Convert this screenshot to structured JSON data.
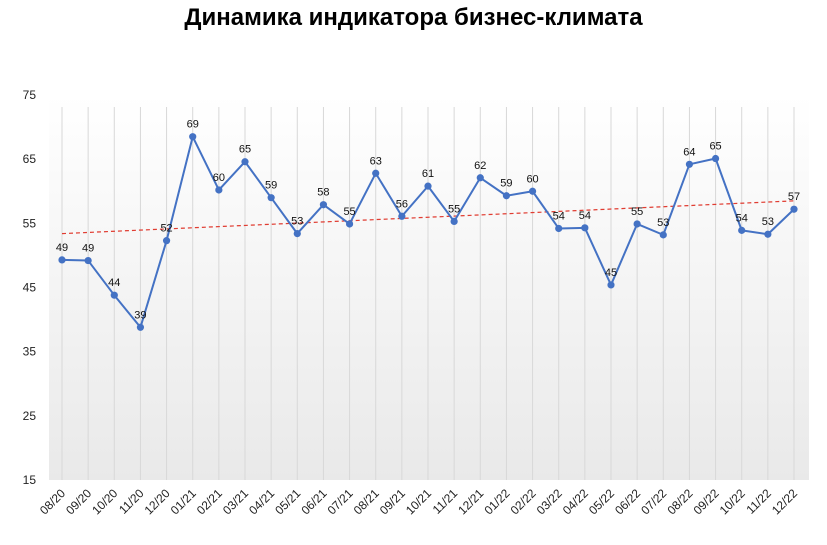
{
  "chart_data": {
    "type": "line",
    "title": "Динамика индикатора бизнес-климата",
    "xlabel": "",
    "ylabel": "",
    "ylim": [
      15,
      75
    ],
    "yticks": [
      15,
      25,
      35,
      45,
      55,
      65,
      75
    ],
    "grid": "vertical",
    "categories": [
      "08/20",
      "09/20",
      "10/20",
      "11/20",
      "12/20",
      "01/21",
      "02/21",
      "03/21",
      "04/21",
      "05/21",
      "06/21",
      "07/21",
      "08/21",
      "09/21",
      "10/21",
      "11/21",
      "12/21",
      "01/22",
      "02/22",
      "03/22",
      "04/22",
      "05/22",
      "06/22",
      "07/22",
      "08/22",
      "09/22",
      "10/22",
      "11/22",
      "12/22"
    ],
    "series": [
      {
        "values": [
          49.3,
          49.2,
          43.8,
          38.8,
          52.3,
          68.5,
          60.2,
          64.6,
          59.0,
          53.4,
          57.9,
          54.9,
          62.8,
          56.1,
          60.8,
          55.3,
          62.1,
          59.3,
          60.0,
          54.2,
          54.3,
          45.4,
          54.9,
          53.2,
          64.2,
          65.1,
          53.9,
          53.3,
          57.2
        ],
        "labels": [
          "49",
          "49",
          "44",
          "39",
          "52",
          "69",
          "60",
          "65",
          "59",
          "53",
          "58",
          "55",
          "63",
          "56",
          "61",
          "55",
          "62",
          "59",
          "60",
          "54",
          "54",
          "45",
          "55",
          "53",
          "64",
          "65",
          "54",
          "53",
          "57"
        ],
        "color": "#4472C4"
      }
    ],
    "trendline": {
      "from": 53.4,
      "to": 58.5,
      "color": "#E03C31",
      "style": "dashed"
    }
  }
}
